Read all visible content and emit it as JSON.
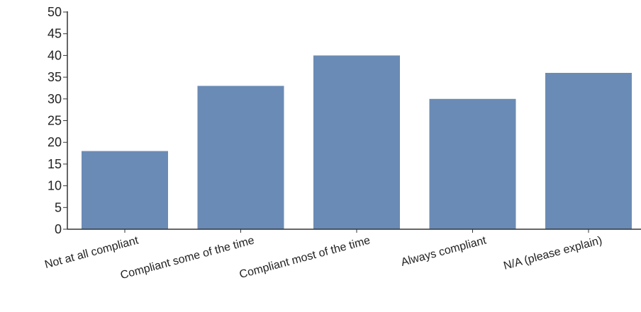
{
  "chart_data": {
    "type": "bar",
    "categories": [
      "Not at all compliant",
      "Compliant some of the time",
      "Compliant most of the time",
      "Always compliant",
      "N/A (please explain)"
    ],
    "values": [
      18,
      33,
      40,
      30,
      36
    ],
    "title": "",
    "xlabel": "",
    "ylabel": "",
    "ylim": [
      0,
      50
    ],
    "y_ticks": [
      0,
      5,
      10,
      15,
      20,
      25,
      30,
      35,
      40,
      45,
      50
    ],
    "grid": false,
    "legend": "none",
    "bar_color": "#6a8bb5",
    "axis_color": "#333333"
  }
}
